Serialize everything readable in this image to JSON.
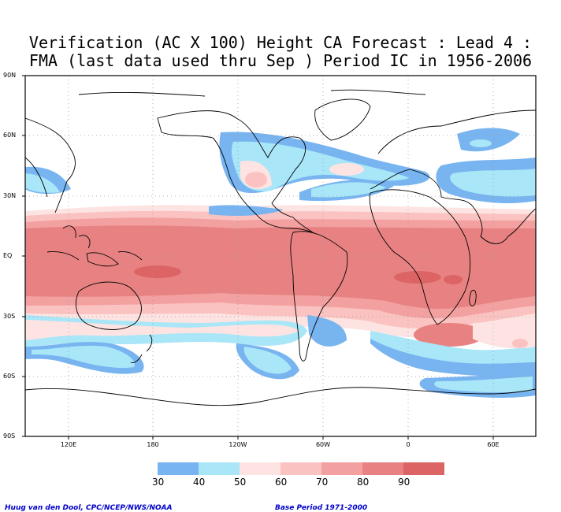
{
  "title": {
    "line1": "Verification (AC X 100) Height CA Forecast : Lead 4 :",
    "line2": "FMA (last data used thru Sep ) Period IC in 1956-2006"
  },
  "axes": {
    "lat_labels": [
      "90N",
      "60N",
      "30N",
      "EQ",
      "30S",
      "60S",
      "90S"
    ],
    "lon_labels": [
      "120E",
      "180",
      "120W",
      "60W",
      "0",
      "60E"
    ]
  },
  "legend": {
    "levels": [
      "30",
      "40",
      "50",
      "60",
      "70",
      "80",
      "90"
    ],
    "colors": [
      "#78b4f0",
      "#a8e6f8",
      "#fde4e2",
      "#fac2c0",
      "#f3a0a0",
      "#e88282",
      "#dd6464"
    ]
  },
  "footer": {
    "left": "Huug van den Dool, CPC/NCEP/NWS/NOAA",
    "right": "Base Period 1971-2000"
  }
}
